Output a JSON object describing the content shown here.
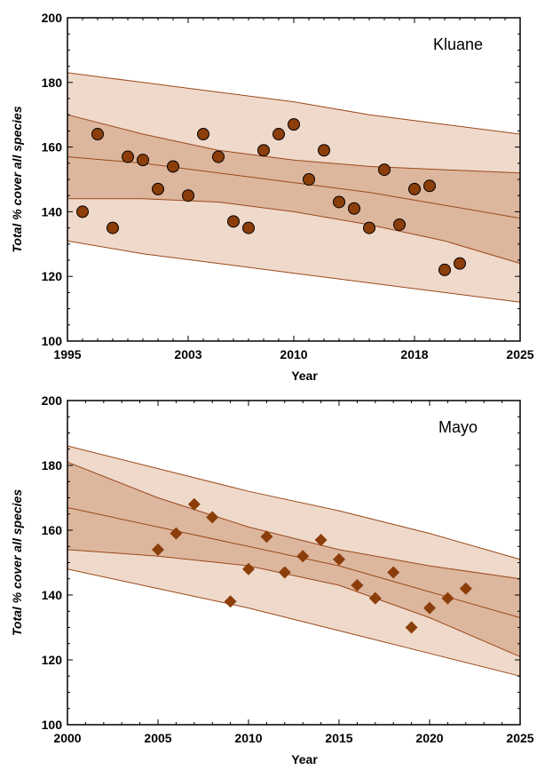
{
  "chart_data": [
    {
      "type": "scatter",
      "site_label": "Kluane",
      "xlabel": "Year",
      "ylabel": "Total % cover all species",
      "xlim": [
        1995,
        2025
      ],
      "ylim": [
        100,
        200
      ],
      "xticks": [
        1995,
        2003,
        2010,
        2018,
        2025
      ],
      "yticks": [
        100,
        120,
        140,
        160,
        180,
        200
      ],
      "marker": "circle",
      "colors": {
        "marker": "#8b3e0a",
        "outer_band": "#efd9cb",
        "inner_band": "#ddb69e",
        "line": "#9a4a1a"
      },
      "fit": {
        "x": [
          1995,
          2000,
          2005,
          2010,
          2015,
          2020,
          2025
        ],
        "y": [
          157,
          155,
          152,
          149,
          146,
          142,
          138
        ],
        "ci_lower": [
          144,
          144,
          143,
          140,
          136,
          131,
          124
        ],
        "ci_upper": [
          170,
          164,
          159,
          156,
          154,
          153,
          152
        ],
        "pi_lower": [
          131,
          127,
          124,
          121,
          118,
          115,
          112
        ],
        "pi_upper": [
          183,
          180,
          177,
          174,
          170,
          167,
          164
        ]
      },
      "points": [
        {
          "x": 1996,
          "y": 140
        },
        {
          "x": 1997,
          "y": 164
        },
        {
          "x": 1998,
          "y": 135
        },
        {
          "x": 1999,
          "y": 157
        },
        {
          "x": 2000,
          "y": 156
        },
        {
          "x": 2001,
          "y": 147
        },
        {
          "x": 2002,
          "y": 154
        },
        {
          "x": 2003,
          "y": 145
        },
        {
          "x": 2004,
          "y": 164
        },
        {
          "x": 2005,
          "y": 157
        },
        {
          "x": 2006,
          "y": 137
        },
        {
          "x": 2007,
          "y": 135
        },
        {
          "x": 2008,
          "y": 159
        },
        {
          "x": 2009,
          "y": 164
        },
        {
          "x": 2010,
          "y": 167
        },
        {
          "x": 2011,
          "y": 150
        },
        {
          "x": 2012,
          "y": 159
        },
        {
          "x": 2013,
          "y": 143
        },
        {
          "x": 2014,
          "y": 141
        },
        {
          "x": 2015,
          "y": 135
        },
        {
          "x": 2016,
          "y": 153
        },
        {
          "x": 2017,
          "y": 136
        },
        {
          "x": 2018,
          "y": 147
        },
        {
          "x": 2019,
          "y": 148
        },
        {
          "x": 2020,
          "y": 122
        },
        {
          "x": 2021,
          "y": 124
        }
      ]
    },
    {
      "type": "scatter",
      "site_label": "Mayo",
      "xlabel": "Year",
      "ylabel": "Total % cover all species",
      "xlim": [
        2000,
        2025
      ],
      "ylim": [
        100,
        200
      ],
      "xticks": [
        2000,
        2005,
        2010,
        2015,
        2020,
        2025
      ],
      "yticks": [
        100,
        120,
        140,
        160,
        180,
        200
      ],
      "marker": "diamond",
      "colors": {
        "marker": "#8b3e0a",
        "outer_band": "#efd9cb",
        "inner_band": "#ddb69e",
        "line": "#9a4a1a"
      },
      "fit": {
        "x": [
          2000,
          2005,
          2010,
          2015,
          2020,
          2025
        ],
        "y": [
          167,
          161,
          155,
          149,
          141,
          133
        ],
        "ci_lower": [
          154,
          152,
          149,
          143,
          133,
          121
        ],
        "ci_upper": [
          181,
          170,
          161,
          154,
          149,
          145
        ],
        "pi_lower": [
          148,
          142,
          136,
          129,
          122,
          115
        ],
        "pi_upper": [
          186,
          179,
          172,
          166,
          159,
          151
        ]
      },
      "points": [
        {
          "x": 2005,
          "y": 154
        },
        {
          "x": 2006,
          "y": 159
        },
        {
          "x": 2007,
          "y": 168
        },
        {
          "x": 2008,
          "y": 164
        },
        {
          "x": 2009,
          "y": 138
        },
        {
          "x": 2010,
          "y": 148
        },
        {
          "x": 2011,
          "y": 158
        },
        {
          "x": 2012,
          "y": 147
        },
        {
          "x": 2013,
          "y": 152
        },
        {
          "x": 2014,
          "y": 157
        },
        {
          "x": 2015,
          "y": 151
        },
        {
          "x": 2016,
          "y": 143
        },
        {
          "x": 2017,
          "y": 139
        },
        {
          "x": 2018,
          "y": 147
        },
        {
          "x": 2019,
          "y": 130
        },
        {
          "x": 2020,
          "y": 136
        },
        {
          "x": 2021,
          "y": 139
        },
        {
          "x": 2022,
          "y": 142
        }
      ]
    }
  ]
}
